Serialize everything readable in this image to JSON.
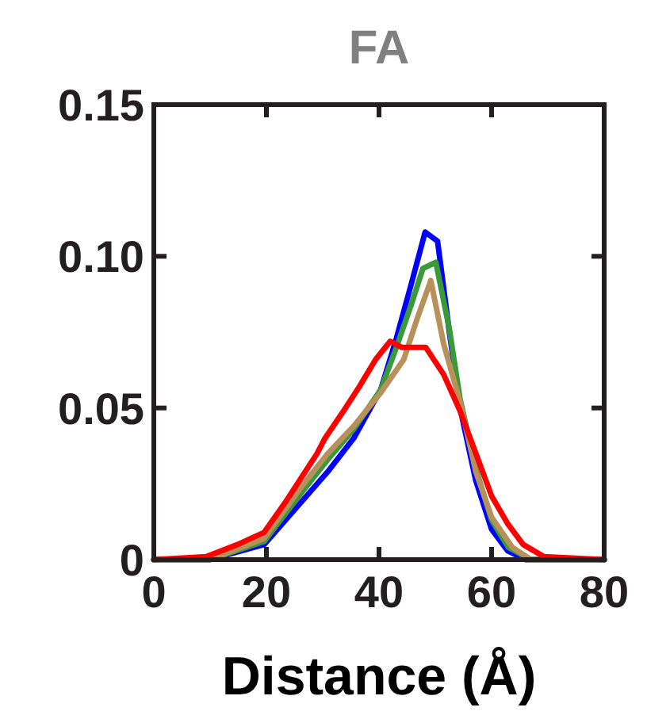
{
  "chart_data": {
    "type": "line",
    "title": "FA",
    "xlabel": "Distance (Å)",
    "xlim": [
      0,
      80
    ],
    "xticks": [
      0,
      20,
      40,
      60,
      80
    ],
    "ylim": [
      0,
      0.15
    ],
    "yticks": [
      0,
      {
        "value": 0.05,
        "label": "0.05"
      },
      {
        "value": 0.1,
        "label": "0.10"
      },
      0.15
    ],
    "grid": false,
    "line_style": "solid",
    "marker": "none",
    "series": [
      {
        "color": "#0000ff",
        "x": [
          0,
          10,
          19.6,
          26.2,
          30.9,
          35.5,
          40.3,
          43.1,
          45.9,
          48.2,
          50.4,
          52.5,
          54.4,
          57.2,
          60,
          62.8,
          66,
          80
        ],
        "values": [
          0,
          0,
          0.005,
          0.019,
          0.029,
          0.04,
          0.056,
          0.073,
          0.092,
          0.108,
          0.105,
          0.075,
          0.05,
          0.026,
          0.01,
          0.003,
          0,
          0
        ]
      },
      {
        "color": "#3a9a3a",
        "x": [
          0,
          10,
          19.6,
          26.2,
          30.9,
          35.5,
          40.3,
          43.1,
          45.9,
          47.8,
          50.1,
          52.5,
          54.4,
          57.2,
          60,
          63,
          67,
          80
        ],
        "values": [
          0,
          0,
          0.006,
          0.022,
          0.033,
          0.043,
          0.056,
          0.07,
          0.085,
          0.096,
          0.098,
          0.076,
          0.053,
          0.03,
          0.013,
          0.004,
          0,
          0
        ]
      },
      {
        "color": "#b8915a",
        "x": [
          0,
          10,
          19.6,
          26.2,
          30.9,
          35.5,
          40.3,
          44.4,
          46.7,
          49.2,
          51.5,
          54.4,
          57.2,
          60,
          63.7,
          67,
          80
        ],
        "values": [
          0,
          0,
          0.007,
          0.024,
          0.035,
          0.044,
          0.055,
          0.066,
          0.079,
          0.092,
          0.071,
          0.052,
          0.029,
          0.014,
          0.004,
          0,
          0
        ]
      },
      {
        "color": "#ff0000",
        "x": [
          0,
          9.3,
          14.9,
          19.6,
          23.4,
          26.2,
          29,
          30.4,
          33.7,
          36.5,
          39.4,
          42,
          44,
          48.3,
          51.5,
          54.4,
          57.2,
          60,
          62.8,
          65.6,
          69.3,
          80
        ],
        "values": [
          0,
          0.001,
          0.005,
          0.009,
          0.019,
          0.027,
          0.035,
          0.04,
          0.049,
          0.057,
          0.066,
          0.072,
          0.07,
          0.07,
          0.061,
          0.049,
          0.035,
          0.021,
          0.012,
          0.005,
          0.001,
          0
        ]
      }
    ]
  }
}
